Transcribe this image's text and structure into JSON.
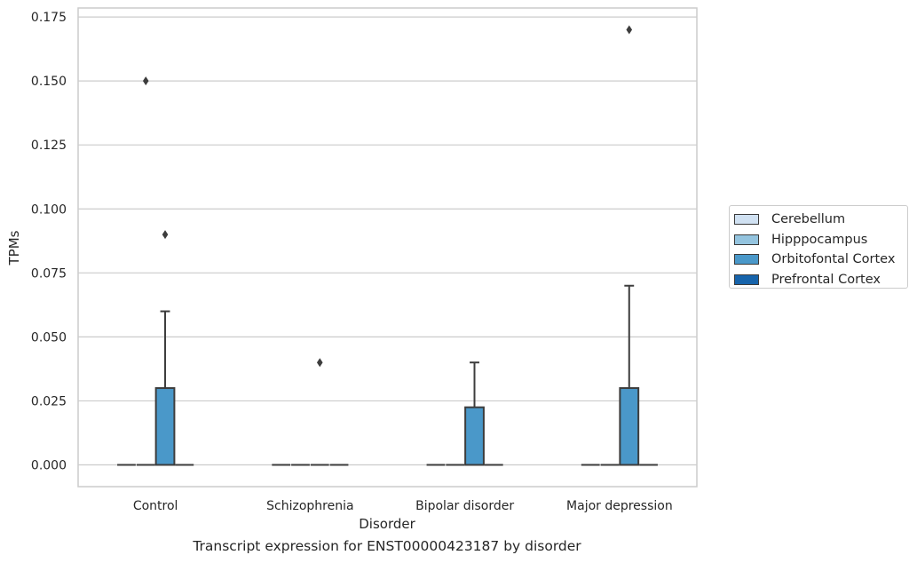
{
  "chart_data": {
    "type": "box",
    "xlabel": "Disorder",
    "ylabel": "TPMs",
    "caption": "Transcript expression for ENST00000423187 by disorder",
    "categories": [
      "Control",
      "Schizophrenia",
      "Bipolar disorder",
      "Major depression"
    ],
    "ylim": [
      -0.0085,
      0.1785
    ],
    "yticks": [
      "0.000",
      "0.025",
      "0.050",
      "0.075",
      "0.100",
      "0.125",
      "0.150",
      "0.175"
    ],
    "grid": "horizontal",
    "legend_position": "right",
    "series": [
      {
        "name": "Cerebellum",
        "color": "#d0e1f2",
        "boxes": [
          {
            "q1": 0,
            "median": 0,
            "q3": 0,
            "whisker_low": 0,
            "whisker_high": 0,
            "outliers": []
          },
          {
            "q1": 0,
            "median": 0,
            "q3": 0,
            "whisker_low": 0,
            "whisker_high": 0,
            "outliers": []
          },
          {
            "q1": 0,
            "median": 0,
            "q3": 0,
            "whisker_low": 0,
            "whisker_high": 0,
            "outliers": []
          },
          {
            "q1": 0,
            "median": 0,
            "q3": 0,
            "whisker_low": 0,
            "whisker_high": 0,
            "outliers": []
          }
        ]
      },
      {
        "name": "Hipppocampus",
        "color": "#94c4df",
        "boxes": [
          {
            "q1": 0,
            "median": 0,
            "q3": 0,
            "whisker_low": 0,
            "whisker_high": 0,
            "outliers": [
              0.15
            ]
          },
          {
            "q1": 0,
            "median": 0,
            "q3": 0,
            "whisker_low": 0,
            "whisker_high": 0,
            "outliers": []
          },
          {
            "q1": 0,
            "median": 0,
            "q3": 0,
            "whisker_low": 0,
            "whisker_high": 0,
            "outliers": []
          },
          {
            "q1": 0,
            "median": 0,
            "q3": 0,
            "whisker_low": 0,
            "whisker_high": 0,
            "outliers": []
          }
        ]
      },
      {
        "name": "Orbitofontal Cortex",
        "color": "#4a98c9",
        "boxes": [
          {
            "q1": 0,
            "median": 0,
            "q3": 0.03,
            "whisker_low": 0,
            "whisker_high": 0.06,
            "outliers": [
              0.09
            ]
          },
          {
            "q1": 0,
            "median": 0,
            "q3": 0,
            "whisker_low": 0,
            "whisker_high": 0,
            "outliers": [
              0.04
            ]
          },
          {
            "q1": 0,
            "median": 0,
            "q3": 0.0225,
            "whisker_low": 0,
            "whisker_high": 0.04,
            "outliers": []
          },
          {
            "q1": 0,
            "median": 0,
            "q3": 0.03,
            "whisker_low": 0,
            "whisker_high": 0.07,
            "outliers": [
              0.17
            ]
          }
        ]
      },
      {
        "name": "Prefrontal Cortex",
        "color": "#1764ab",
        "boxes": [
          {
            "q1": 0,
            "median": 0,
            "q3": 0,
            "whisker_low": 0,
            "whisker_high": 0,
            "outliers": []
          },
          {
            "q1": 0,
            "median": 0,
            "q3": 0,
            "whisker_low": 0,
            "whisker_high": 0,
            "outliers": []
          },
          {
            "q1": 0,
            "median": 0,
            "q3": 0,
            "whisker_low": 0,
            "whisker_high": 0,
            "outliers": []
          },
          {
            "q1": 0,
            "median": 0,
            "q3": 0,
            "whisker_low": 0,
            "whisker_high": 0,
            "outliers": []
          }
        ]
      }
    ]
  }
}
